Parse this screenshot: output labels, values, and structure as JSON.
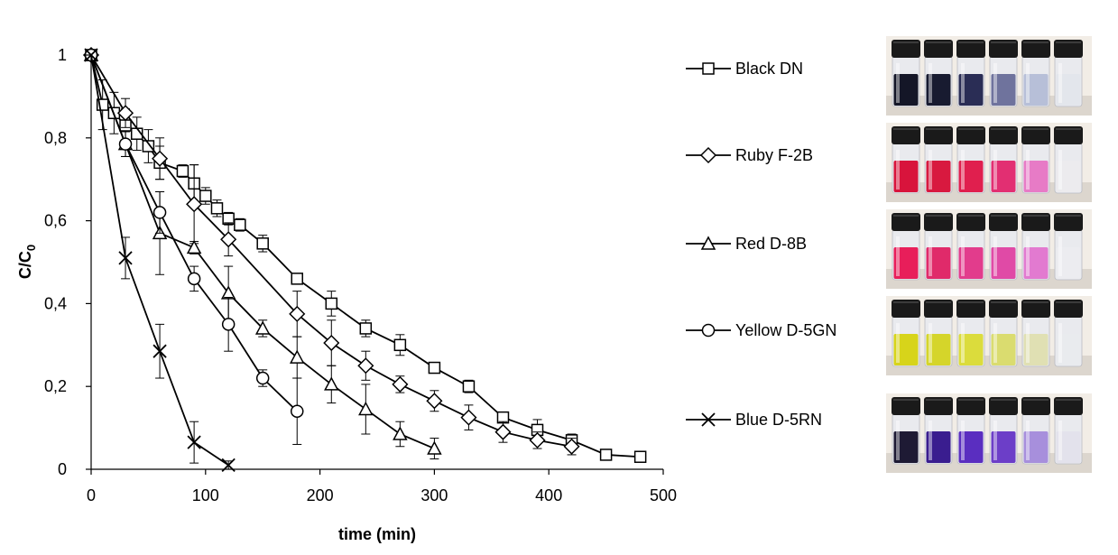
{
  "chart_data": {
    "type": "line",
    "title": "",
    "xlabel": "time (min)",
    "ylabel": "C/C",
    "ylabel_subscript": "0",
    "xlim": [
      0,
      500
    ],
    "ylim": [
      0,
      1
    ],
    "x_ticks": [
      "0",
      "100",
      "200",
      "300",
      "400",
      "500"
    ],
    "y_ticks": [
      "0",
      "0,2",
      "0,4",
      "0,6",
      "0,8",
      "1"
    ],
    "grid": false,
    "legend_position": "right",
    "series": [
      {
        "name": "Black DN",
        "marker": "square",
        "x": [
          0,
          10,
          20,
          30,
          40,
          50,
          60,
          80,
          90,
          100,
          110,
          120,
          130,
          150,
          180,
          210,
          240,
          270,
          300,
          330,
          360,
          390,
          420,
          450,
          480
        ],
        "y": [
          1,
          0.88,
          0.86,
          0.83,
          0.81,
          0.78,
          0.74,
          0.72,
          0.69,
          0.66,
          0.63,
          0.605,
          0.59,
          0.545,
          0.46,
          0.4,
          0.34,
          0.3,
          0.245,
          0.2,
          0.125,
          0.095,
          0.07,
          0.035,
          0.03
        ],
        "err": [
          0,
          0.06,
          0.05,
          0.04,
          0.04,
          0.04,
          0.04,
          0.015,
          0.045,
          0.02,
          0.02,
          0.015,
          0.015,
          0.02,
          0.01,
          0.03,
          0.02,
          0.025,
          0.01,
          0.015,
          0.01,
          0.025,
          0.015,
          0.01,
          0.01
        ]
      },
      {
        "name": "Ruby F-2B",
        "marker": "diamond",
        "x": [
          0,
          30,
          60,
          90,
          120,
          180,
          210,
          240,
          270,
          300,
          330,
          360,
          390,
          420
        ],
        "y": [
          1,
          0.86,
          0.75,
          0.64,
          0.555,
          0.375,
          0.305,
          0.25,
          0.205,
          0.165,
          0.125,
          0.09,
          0.07,
          0.055
        ],
        "err": [
          0,
          0.035,
          0.05,
          0.095,
          0.04,
          0.055,
          0.055,
          0.035,
          0.02,
          0.025,
          0.03,
          0.025,
          0.02,
          0.02
        ]
      },
      {
        "name": "Red D-8B",
        "marker": "triangle",
        "x": [
          0,
          30,
          60,
          90,
          120,
          150,
          180,
          210,
          240,
          270,
          300
        ],
        "y": [
          1,
          0.785,
          0.57,
          0.535,
          0.425,
          0.34,
          0.27,
          0.205,
          0.145,
          0.085,
          0.05
        ],
        "err": [
          0,
          0.03,
          0.1,
          0.015,
          0.065,
          0.02,
          0.05,
          0.045,
          0.06,
          0.03,
          0.025
        ]
      },
      {
        "name": "Yellow D-5GN",
        "marker": "circle",
        "x": [
          0,
          30,
          60,
          90,
          120,
          150,
          180
        ],
        "y": [
          1,
          0.785,
          0.62,
          0.46,
          0.35,
          0.22,
          0.14
        ],
        "err": [
          0,
          0.03,
          0.05,
          0.03,
          0.065,
          0.02,
          0.08
        ]
      },
      {
        "name": "Blue D-5RN",
        "marker": "x",
        "x": [
          0,
          30,
          60,
          90,
          120
        ],
        "y": [
          1,
          0.51,
          0.285,
          0.065,
          0.01
        ],
        "err": [
          0,
          0.05,
          0.065,
          0.05,
          0.01
        ]
      }
    ]
  },
  "photos": [
    {
      "series": "Black DN",
      "liquid_colors": [
        "#141627",
        "#181b30",
        "#2a2d55",
        "#6f739d",
        "#b7bfd8",
        "#e3e6ec"
      ]
    },
    {
      "series": "Ruby F-2B",
      "liquid_colors": [
        "#d8143c",
        "#d8193f",
        "#e01f4e",
        "#e22f72",
        "#e77bc6",
        "#ecebee"
      ]
    },
    {
      "series": "Red D-8B",
      "liquid_colors": [
        "#e81e5a",
        "#e02a6a",
        "#e23c8c",
        "#e04aa6",
        "#e27ad0",
        "#ececf0"
      ]
    },
    {
      "series": "Yellow D-5GN",
      "liquid_colors": [
        "#d7d41a",
        "#d5d52a",
        "#dbdc3c",
        "#dadc6f",
        "#e0e0b3",
        "#e9ebee"
      ]
    },
    {
      "series": "Blue D-5RN",
      "liquid_colors": [
        "#1e1a34",
        "#3a1d8f",
        "#5a2ec0",
        "#6c3ec8",
        "#a78fdc",
        "#e3e2ec"
      ]
    }
  ]
}
